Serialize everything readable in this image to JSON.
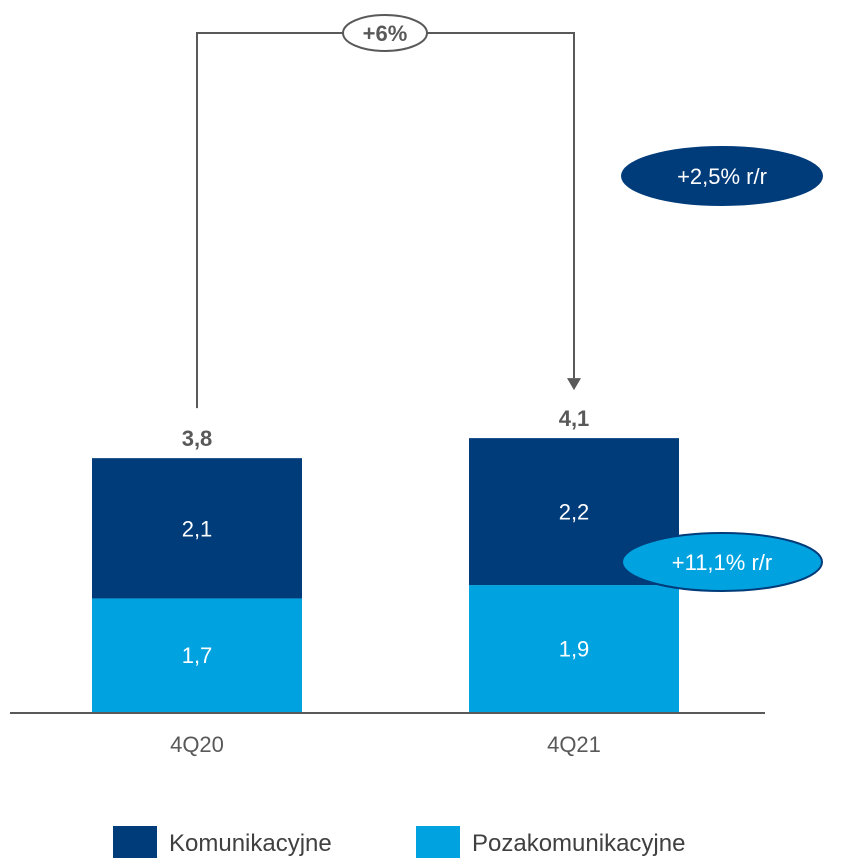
{
  "chart_data": {
    "type": "bar",
    "stacked": true,
    "categories": [
      "4Q20",
      "4Q21"
    ],
    "series": [
      {
        "name": "Pozakomunikacyjne",
        "values": [
          1.7,
          1.9
        ],
        "labels": [
          "1,7",
          "1,9"
        ],
        "color": "#00a3e0"
      },
      {
        "name": "Komunikacyjne",
        "values": [
          2.1,
          2.2
        ],
        "labels": [
          "2,1",
          "2,2"
        ],
        "color": "#003b7a"
      }
    ],
    "totals": [
      3.8,
      4.1
    ],
    "total_labels": [
      "3,8",
      "4,1"
    ],
    "change": {
      "label": "+6%"
    },
    "badges": [
      {
        "label": "+2,5% r/r",
        "series": "Komunikacyjne",
        "fill": "#003b7a"
      },
      {
        "label": "+11,1% r/r",
        "series": "Pozakomunikacyjne",
        "fill": "#00a3e0"
      }
    ],
    "ylim": [
      0,
      4.6
    ],
    "grid": false,
    "legend_position": "bottom",
    "title": "",
    "xlabel": "",
    "ylabel": ""
  },
  "colors": {
    "axis": "#595959",
    "badge_outline": "#003b7a"
  }
}
